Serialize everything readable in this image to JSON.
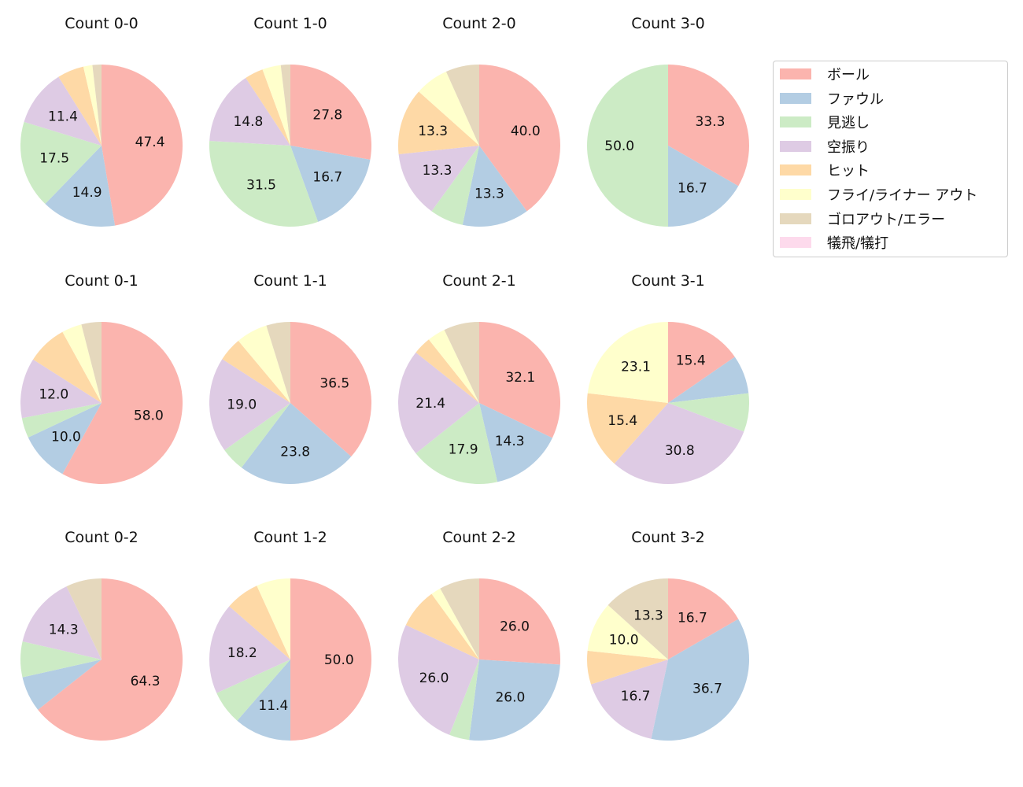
{
  "chart_data": [
    {
      "type": "pie",
      "title": "Count 0-0",
      "values": [
        47.4,
        14.9,
        17.5,
        11.4,
        5.3,
        1.8,
        1.8,
        0
      ]
    },
    {
      "type": "pie",
      "title": "Count 1-0",
      "values": [
        27.8,
        16.7,
        31.5,
        14.8,
        3.7,
        3.7,
        1.9,
        0
      ]
    },
    {
      "type": "pie",
      "title": "Count 2-0",
      "values": [
        40.0,
        13.3,
        6.7,
        13.3,
        13.3,
        6.7,
        6.7,
        0
      ]
    },
    {
      "type": "pie",
      "title": "Count 3-0",
      "values": [
        33.3,
        16.7,
        50.0,
        0,
        0,
        0,
        0,
        0
      ]
    },
    {
      "type": "pie",
      "title": "Count 0-1",
      "values": [
        58.0,
        10.0,
        4.0,
        12.0,
        8.0,
        4.0,
        4.0,
        0
      ]
    },
    {
      "type": "pie",
      "title": "Count 1-1",
      "values": [
        36.5,
        23.8,
        4.8,
        19.0,
        4.8,
        6.3,
        4.8,
        0
      ]
    },
    {
      "type": "pie",
      "title": "Count 2-1",
      "values": [
        32.1,
        14.3,
        17.9,
        21.4,
        3.6,
        3.6,
        7.1,
        0
      ]
    },
    {
      "type": "pie",
      "title": "Count 3-1",
      "values": [
        15.4,
        7.7,
        7.7,
        30.8,
        15.4,
        23.1,
        0,
        0
      ]
    },
    {
      "type": "pie",
      "title": "Count 0-2",
      "values": [
        64.3,
        7.1,
        7.1,
        14.3,
        0,
        0,
        7.1,
        0
      ]
    },
    {
      "type": "pie",
      "title": "Count 1-2",
      "values": [
        50.0,
        11.4,
        6.8,
        18.2,
        6.8,
        6.8,
        0,
        0
      ]
    },
    {
      "type": "pie",
      "title": "Count 2-2",
      "values": [
        26.0,
        26.0,
        4.0,
        26.0,
        8.0,
        2.0,
        8.0,
        0
      ]
    },
    {
      "type": "pie",
      "title": "Count 3-2",
      "values": [
        16.7,
        36.7,
        0,
        16.7,
        6.7,
        10.0,
        13.3,
        0
      ]
    }
  ],
  "legend": {
    "labels": [
      "ボール",
      "ファウル",
      "見逃し",
      "空振り",
      "ヒット",
      "フライ/ライナー アウト",
      "ゴロアウト/エラー",
      "犠飛/犠打"
    ],
    "colors": [
      "#fbb4ae",
      "#b3cde3",
      "#ccebc5",
      "#decbe4",
      "#fed9a6",
      "#ffffcc",
      "#e5d8bd",
      "#fddaec"
    ],
    "placement": "top-right"
  }
}
